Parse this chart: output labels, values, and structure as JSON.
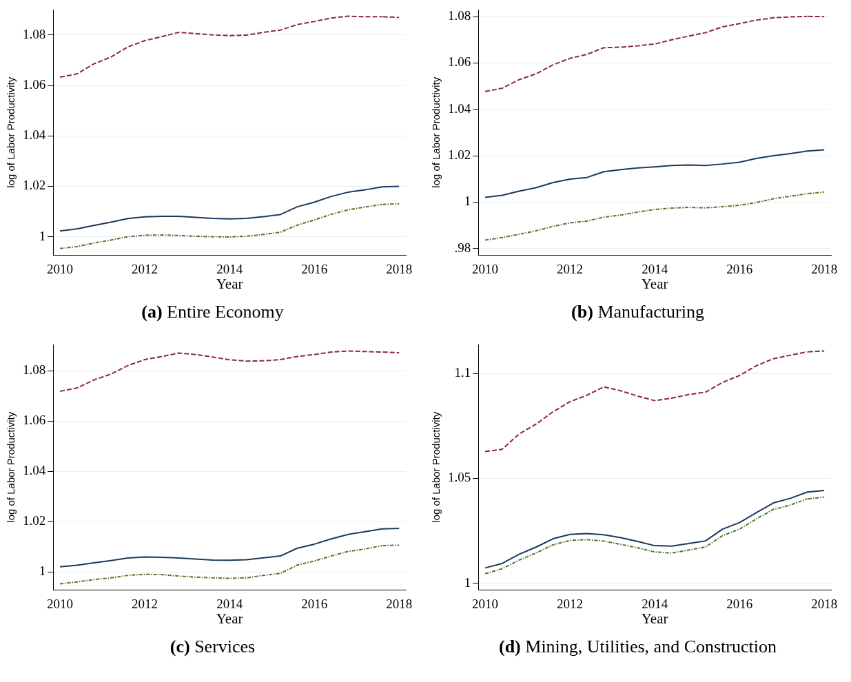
{
  "chart_data": [
    {
      "type": "line",
      "title": "(a) Entire Economy",
      "xlabel": "Year",
      "ylabel": "log of Labor Productivity",
      "x": [
        2010,
        2010.4,
        2010.8,
        2011.2,
        2011.6,
        2012,
        2012.4,
        2012.8,
        2013.2,
        2013.6,
        2014,
        2014.4,
        2014.8,
        2015.2,
        2015.6,
        2016,
        2016.4,
        2016.8,
        2017.2,
        2017.6,
        2018
      ],
      "xlim": [
        2009.84,
        2018.16
      ],
      "xticks": [
        2010,
        2012,
        2014,
        2016,
        2018
      ],
      "ylim": [
        0.9928,
        1.09
      ],
      "yticks": [
        1,
        1.02,
        1.04,
        1.06,
        1.08
      ],
      "grid": "y",
      "legend": false,
      "series": [
        {
          "color": "#8b2a35",
          "line_style": "dashed",
          "values": [
            1.0633,
            1.0646,
            1.0686,
            1.0713,
            1.0753,
            1.0778,
            1.0794,
            1.0811,
            1.0806,
            1.0801,
            1.0798,
            1.08,
            1.0811,
            1.082,
            1.0842,
            1.0854,
            1.0868,
            1.0875,
            1.0873,
            1.0873,
            1.087
          ]
        },
        {
          "color": "#1a3a5c",
          "line_style": "solid",
          "values": [
            1.0023,
            1.0031,
            1.0045,
            1.0058,
            1.0072,
            1.0079,
            1.0081,
            1.0081,
            1.0077,
            1.0073,
            1.0071,
            1.0073,
            1.008,
            1.0088,
            1.0119,
            1.0137,
            1.016,
            1.0177,
            1.0186,
            1.0198,
            1.02
          ]
        },
        {
          "color": "#55702a",
          "line_style": "dotted",
          "values": [
            0.9953,
            0.9961,
            0.9975,
            0.9987,
            1.0,
            1.0006,
            1.0007,
            1.0005,
            1.0002,
            1.0,
            0.9999,
            1.0002,
            1.0009,
            1.0018,
            1.0046,
            1.0067,
            1.0089,
            1.0107,
            1.0118,
            1.0128,
            1.0131
          ]
        }
      ]
    },
    {
      "type": "line",
      "title": "(b) Manufacturing",
      "xlabel": "Year",
      "ylabel": "log of Labor Productivity",
      "x": [
        2010,
        2010.4,
        2010.8,
        2011.2,
        2011.6,
        2012,
        2012.4,
        2012.8,
        2013.2,
        2013.6,
        2014,
        2014.4,
        2014.8,
        2015.2,
        2015.6,
        2016,
        2016.4,
        2016.8,
        2017.2,
        2017.6,
        2018
      ],
      "xlim": [
        2009.84,
        2018.16
      ],
      "xticks": [
        2010,
        2012,
        2014,
        2016,
        2018
      ],
      "ylim": [
        0.9772,
        1.0829
      ],
      "yticks": [
        {
          "value": 0.98,
          "label": ".98"
        },
        1,
        1.02,
        1.04,
        1.06,
        1.08
      ],
      "grid": "y",
      "legend": false,
      "series": [
        {
          "color": "#8b2a35",
          "line_style": "dashed",
          "values": [
            1.0477,
            1.0491,
            1.0528,
            1.0553,
            1.0592,
            1.062,
            1.0637,
            1.0666,
            1.0668,
            1.0674,
            1.0682,
            1.07,
            1.0716,
            1.0731,
            1.0756,
            1.077,
            1.0785,
            1.0795,
            1.0799,
            1.0801,
            1.08
          ]
        },
        {
          "color": "#1a3a5c",
          "line_style": "solid",
          "values": [
            1.002,
            1.0029,
            1.0047,
            1.0062,
            1.0084,
            1.0099,
            1.0106,
            1.0131,
            1.014,
            1.0147,
            1.0152,
            1.0158,
            1.016,
            1.0158,
            1.0164,
            1.0172,
            1.0188,
            1.02,
            1.0209,
            1.022,
            1.0225
          ]
        },
        {
          "color": "#55702a",
          "line_style": "dotted",
          "values": [
            0.9836,
            0.9847,
            0.9861,
            0.9876,
            0.9895,
            0.991,
            0.9918,
            0.9935,
            0.9944,
            0.9957,
            0.9968,
            0.9974,
            0.9977,
            0.9975,
            0.998,
            0.9986,
            0.9998,
            1.0014,
            1.0025,
            1.0036,
            1.0043
          ]
        }
      ]
    },
    {
      "type": "line",
      "title": "(c) Services",
      "xlabel": "Year",
      "ylabel": "log of Labor Productivity",
      "x": [
        2010,
        2010.4,
        2010.8,
        2011.2,
        2011.6,
        2012,
        2012.4,
        2012.8,
        2013.2,
        2013.6,
        2014,
        2014.4,
        2014.8,
        2015.2,
        2015.6,
        2016,
        2016.4,
        2016.8,
        2017.2,
        2017.6,
        2018
      ],
      "xlim": [
        2009.84,
        2018.16
      ],
      "xticks": [
        2010,
        2012,
        2014,
        2016,
        2018
      ],
      "ylim": [
        0.993,
        1.0904
      ],
      "yticks": [
        1,
        1.02,
        1.04,
        1.06,
        1.08
      ],
      "grid": "y",
      "legend": false,
      "series": [
        {
          "color": "#8b2a35",
          "line_style": "dashed",
          "values": [
            1.0719,
            1.0732,
            1.0764,
            1.0787,
            1.0821,
            1.0845,
            1.0857,
            1.0871,
            1.0865,
            1.0855,
            1.0844,
            1.0839,
            1.084,
            1.0845,
            1.0857,
            1.0865,
            1.0875,
            1.0879,
            1.0877,
            1.0875,
            1.0872
          ]
        },
        {
          "color": "#1a3a5c",
          "line_style": "solid",
          "values": [
            1.0021,
            1.0027,
            1.0037,
            1.0046,
            1.0056,
            1.006,
            1.0059,
            1.0056,
            1.0052,
            1.0048,
            1.0047,
            1.0049,
            1.0057,
            1.0064,
            1.0095,
            1.0111,
            1.0132,
            1.015,
            1.0161,
            1.0172,
            1.0174
          ]
        },
        {
          "color": "#55702a",
          "line_style": "dotted",
          "values": [
            0.9953,
            0.9961,
            0.997,
            0.9977,
            0.9987,
            0.9991,
            0.999,
            0.9984,
            0.998,
            0.9977,
            0.9975,
            0.9977,
            0.9987,
            0.9995,
            1.0028,
            1.0044,
            1.0064,
            1.0082,
            1.0092,
            1.0105,
            1.0107
          ]
        }
      ]
    },
    {
      "type": "line",
      "title": "(d) Mining, Utilities, and Construction",
      "xlabel": "Year",
      "ylabel": "log of Labor Productivity",
      "x": [
        2010,
        2010.4,
        2010.8,
        2011.2,
        2011.6,
        2012,
        2012.4,
        2012.8,
        2013.2,
        2013.6,
        2014,
        2014.4,
        2014.8,
        2015.2,
        2015.6,
        2016,
        2016.4,
        2016.8,
        2017.2,
        2017.6,
        2018
      ],
      "xlim": [
        2009.84,
        2018.16
      ],
      "xticks": [
        2010,
        2012,
        2014,
        2016,
        2018
      ],
      "ylim": [
        0.9969,
        1.1138
      ],
      "yticks": [
        1,
        1.05,
        1.1
      ],
      "grid": "y",
      "legend": false,
      "series": [
        {
          "color": "#8b2a35",
          "line_style": "dashed",
          "values": [
            1.0628,
            1.0639,
            1.0712,
            1.0759,
            1.0818,
            1.0866,
            1.0897,
            1.0937,
            1.0918,
            1.0893,
            1.0871,
            1.0883,
            1.09,
            1.0912,
            1.0958,
            1.0991,
            1.1038,
            1.1071,
            1.1088,
            1.1104,
            1.1108
          ]
        },
        {
          "color": "#1a3a5c",
          "line_style": "solid",
          "values": [
            1.0073,
            1.0094,
            1.0138,
            1.0172,
            1.0212,
            1.0233,
            1.0237,
            1.0231,
            1.0217,
            1.0199,
            1.0179,
            1.0177,
            1.0189,
            1.0202,
            1.0258,
            1.0289,
            1.0337,
            1.0383,
            1.0405,
            1.0435,
            1.0442
          ]
        },
        {
          "color": "#55702a",
          "line_style": "dotted",
          "values": [
            1.0045,
            1.0069,
            1.011,
            1.0144,
            1.0183,
            1.0204,
            1.0208,
            1.0201,
            1.0185,
            1.0169,
            1.0149,
            1.0144,
            1.0158,
            1.0173,
            1.0227,
            1.0258,
            1.0307,
            1.0352,
            1.0373,
            1.0402,
            1.0411
          ]
        }
      ]
    }
  ]
}
